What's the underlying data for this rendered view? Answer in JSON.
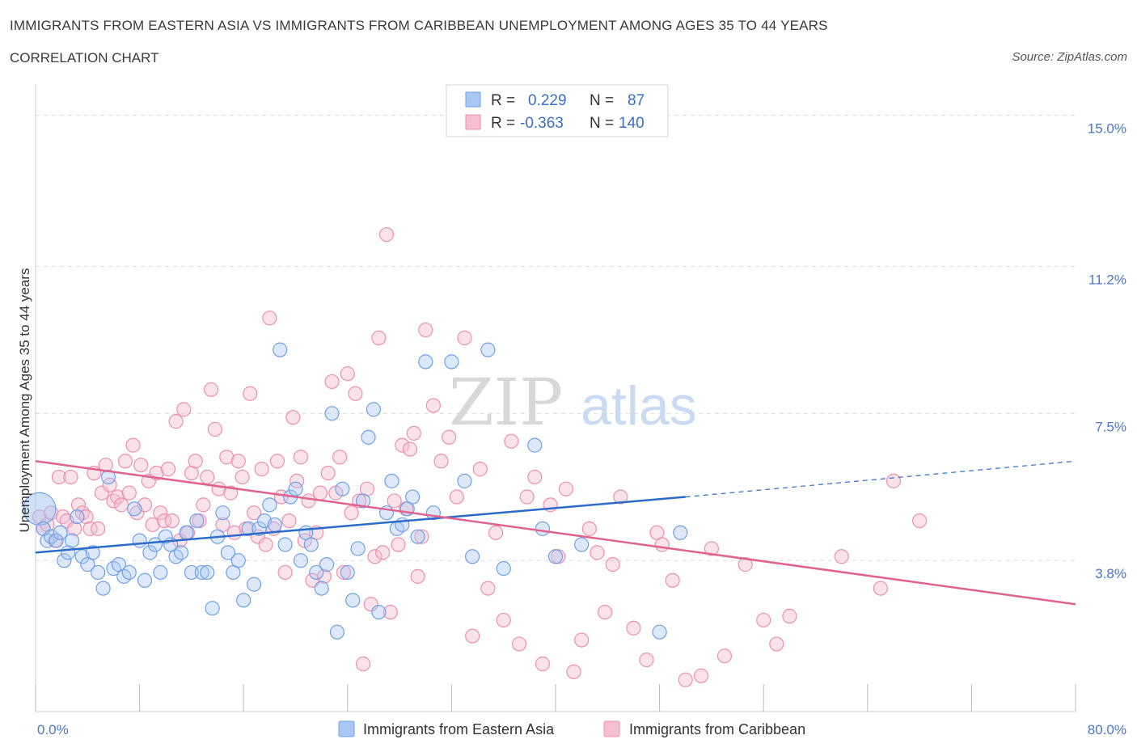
{
  "title": "IMMIGRANTS FROM EASTERN ASIA VS IMMIGRANTS FROM CARIBBEAN UNEMPLOYMENT AMONG AGES 35 TO 44 YEARS",
  "subtitle": "CORRELATION CHART",
  "source": "Source: ZipAtlas.com",
  "watermark": {
    "zip": "ZIP",
    "atlas": "atlas"
  },
  "colors": {
    "blue": "#6fa0e8",
    "blue_fill": "#a9c7f2",
    "blue_line": "#2b6cc9",
    "pink": "#ee8fb0",
    "pink_fill": "#f5bfd1",
    "pink_line": "#e0628f",
    "tick_text": "#4a78c4"
  },
  "legend": {
    "r_label": "R =",
    "n_label": "N =",
    "rows": [
      {
        "r": "0.229",
        "n": "87"
      },
      {
        "r": "-0.363",
        "n": "140"
      }
    ]
  },
  "chart_data": {
    "type": "scatter",
    "ylabel": "Unemployment Among Ages 35 to 44 years",
    "xlim": [
      0,
      80
    ],
    "ylim": [
      0,
      15.5
    ],
    "x_tick_labels": [
      "0.0%",
      "80.0%"
    ],
    "y_ticks": [
      3.8,
      7.5,
      11.2,
      15.0
    ],
    "y_tick_labels": [
      "3.8%",
      "7.5%",
      "11.2%",
      "15.0%"
    ],
    "grid": true,
    "legend_position": "top-center",
    "series": [
      {
        "name": "Immigrants from Eastern Asia",
        "trend": {
          "x": [
            0,
            50
          ],
          "y": [
            4.0,
            5.4
          ],
          "dashed_to": [
            80,
            6.3
          ]
        },
        "points": [
          [
            0.3,
            5.1
          ],
          [
            0.6,
            4.6
          ],
          [
            0.9,
            4.3
          ],
          [
            1.2,
            4.4
          ],
          [
            1.6,
            4.3
          ],
          [
            1.9,
            4.5
          ],
          [
            2.2,
            3.8
          ],
          [
            2.5,
            4.0
          ],
          [
            2.8,
            4.3
          ],
          [
            3.2,
            4.9
          ],
          [
            3.6,
            3.9
          ],
          [
            4.0,
            3.7
          ],
          [
            4.4,
            4.0
          ],
          [
            4.8,
            3.5
          ],
          [
            5.2,
            3.1
          ],
          [
            5.6,
            5.9
          ],
          [
            6.0,
            3.6
          ],
          [
            6.4,
            3.7
          ],
          [
            6.8,
            3.4
          ],
          [
            7.2,
            3.5
          ],
          [
            7.6,
            5.1
          ],
          [
            8.0,
            4.3
          ],
          [
            8.4,
            3.3
          ],
          [
            8.8,
            4.0
          ],
          [
            9.2,
            4.2
          ],
          [
            9.6,
            3.5
          ],
          [
            10.0,
            4.4
          ],
          [
            10.4,
            4.2
          ],
          [
            10.8,
            3.9
          ],
          [
            11.2,
            4.0
          ],
          [
            11.6,
            4.5
          ],
          [
            12.0,
            3.5
          ],
          [
            12.4,
            4.8
          ],
          [
            12.8,
            3.5
          ],
          [
            13.2,
            3.5
          ],
          [
            13.6,
            2.6
          ],
          [
            14.0,
            4.4
          ],
          [
            14.4,
            5.0
          ],
          [
            14.8,
            4.0
          ],
          [
            15.2,
            3.5
          ],
          [
            15.6,
            3.8
          ],
          [
            16.0,
            2.8
          ],
          [
            16.4,
            4.6
          ],
          [
            16.8,
            3.2
          ],
          [
            17.2,
            4.6
          ],
          [
            17.6,
            4.8
          ],
          [
            18.0,
            5.2
          ],
          [
            18.4,
            4.7
          ],
          [
            18.8,
            9.1
          ],
          [
            19.2,
            4.2
          ],
          [
            19.6,
            5.4
          ],
          [
            20.0,
            5.6
          ],
          [
            20.4,
            3.8
          ],
          [
            20.8,
            4.5
          ],
          [
            21.2,
            4.2
          ],
          [
            21.6,
            3.5
          ],
          [
            22.0,
            3.1
          ],
          [
            22.4,
            3.7
          ],
          [
            22.8,
            7.5
          ],
          [
            23.2,
            2.0
          ],
          [
            23.6,
            5.6
          ],
          [
            24.0,
            3.5
          ],
          [
            24.4,
            2.8
          ],
          [
            24.8,
            4.1
          ],
          [
            25.2,
            5.3
          ],
          [
            25.6,
            6.9
          ],
          [
            26.0,
            7.6
          ],
          [
            26.4,
            2.5
          ],
          [
            27.0,
            5.0
          ],
          [
            27.4,
            5.8
          ],
          [
            27.8,
            4.6
          ],
          [
            28.2,
            4.7
          ],
          [
            28.6,
            5.1
          ],
          [
            29.0,
            5.4
          ],
          [
            29.4,
            4.4
          ],
          [
            30.0,
            8.8
          ],
          [
            30.6,
            5.0
          ],
          [
            32.0,
            8.8
          ],
          [
            33.0,
            5.8
          ],
          [
            33.6,
            3.9
          ],
          [
            34.8,
            9.1
          ],
          [
            36.0,
            3.6
          ],
          [
            38.4,
            6.7
          ],
          [
            39.0,
            4.6
          ],
          [
            40.0,
            3.9
          ],
          [
            42.0,
            4.2
          ],
          [
            48.0,
            2.0
          ],
          [
            49.6,
            4.5
          ]
        ]
      },
      {
        "name": "Immigrants from Caribbean",
        "trend": {
          "x": [
            0,
            80
          ],
          "y": [
            6.3,
            2.7
          ]
        },
        "points": [
          [
            0.3,
            4.9
          ],
          [
            0.6,
            4.6
          ],
          [
            0.9,
            4.7
          ],
          [
            1.2,
            5.0
          ],
          [
            1.5,
            4.3
          ],
          [
            1.8,
            5.9
          ],
          [
            2.1,
            4.9
          ],
          [
            2.4,
            4.8
          ],
          [
            2.7,
            5.9
          ],
          [
            3.0,
            4.6
          ],
          [
            3.3,
            5.2
          ],
          [
            3.6,
            5.0
          ],
          [
            3.9,
            4.9
          ],
          [
            4.2,
            4.6
          ],
          [
            4.5,
            6.0
          ],
          [
            4.8,
            4.6
          ],
          [
            5.1,
            5.5
          ],
          [
            5.4,
            6.2
          ],
          [
            5.7,
            5.7
          ],
          [
            6.0,
            5.3
          ],
          [
            6.3,
            5.4
          ],
          [
            6.6,
            5.2
          ],
          [
            6.9,
            6.3
          ],
          [
            7.2,
            5.5
          ],
          [
            7.5,
            6.7
          ],
          [
            7.8,
            5.0
          ],
          [
            8.1,
            6.2
          ],
          [
            8.4,
            5.2
          ],
          [
            8.7,
            5.8
          ],
          [
            9.0,
            4.7
          ],
          [
            9.3,
            6.0
          ],
          [
            9.6,
            5.0
          ],
          [
            9.9,
            4.8
          ],
          [
            10.2,
            6.1
          ],
          [
            10.5,
            4.8
          ],
          [
            10.8,
            7.3
          ],
          [
            11.1,
            4.3
          ],
          [
            11.4,
            7.6
          ],
          [
            11.7,
            4.5
          ],
          [
            12.0,
            6.0
          ],
          [
            12.3,
            6.3
          ],
          [
            12.6,
            4.8
          ],
          [
            12.9,
            5.2
          ],
          [
            13.2,
            5.9
          ],
          [
            13.5,
            8.1
          ],
          [
            13.8,
            7.1
          ],
          [
            14.1,
            5.6
          ],
          [
            14.4,
            4.7
          ],
          [
            14.7,
            6.4
          ],
          [
            15.0,
            5.5
          ],
          [
            15.3,
            4.5
          ],
          [
            15.6,
            6.3
          ],
          [
            15.9,
            5.9
          ],
          [
            16.2,
            4.6
          ],
          [
            16.5,
            8.0
          ],
          [
            16.8,
            5.0
          ],
          [
            17.1,
            4.4
          ],
          [
            17.4,
            6.1
          ],
          [
            17.7,
            4.2
          ],
          [
            18.0,
            9.9
          ],
          [
            18.3,
            4.6
          ],
          [
            18.6,
            6.3
          ],
          [
            18.9,
            5.4
          ],
          [
            19.2,
            3.5
          ],
          [
            19.5,
            4.8
          ],
          [
            19.8,
            7.4
          ],
          [
            20.1,
            5.8
          ],
          [
            20.4,
            6.4
          ],
          [
            20.7,
            4.3
          ],
          [
            21.0,
            5.3
          ],
          [
            21.3,
            3.3
          ],
          [
            21.6,
            4.5
          ],
          [
            21.9,
            5.5
          ],
          [
            22.2,
            3.4
          ],
          [
            22.5,
            6.0
          ],
          [
            22.8,
            8.3
          ],
          [
            23.1,
            5.5
          ],
          [
            23.4,
            6.4
          ],
          [
            23.7,
            3.5
          ],
          [
            24.0,
            8.5
          ],
          [
            24.3,
            5.0
          ],
          [
            24.6,
            8.0
          ],
          [
            24.9,
            5.3
          ],
          [
            25.2,
            1.2
          ],
          [
            25.5,
            5.6
          ],
          [
            25.8,
            2.7
          ],
          [
            26.1,
            3.9
          ],
          [
            26.4,
            9.4
          ],
          [
            26.7,
            4.0
          ],
          [
            27.0,
            12.0
          ],
          [
            27.3,
            2.5
          ],
          [
            27.6,
            5.3
          ],
          [
            27.9,
            4.2
          ],
          [
            28.2,
            6.7
          ],
          [
            28.5,
            5.1
          ],
          [
            28.8,
            6.6
          ],
          [
            29.1,
            7.0
          ],
          [
            29.4,
            3.4
          ],
          [
            29.7,
            4.4
          ],
          [
            30.0,
            9.6
          ],
          [
            30.6,
            7.7
          ],
          [
            31.2,
            6.3
          ],
          [
            31.8,
            6.9
          ],
          [
            32.4,
            5.4
          ],
          [
            33.0,
            9.4
          ],
          [
            33.6,
            1.9
          ],
          [
            34.2,
            6.1
          ],
          [
            34.8,
            3.1
          ],
          [
            35.4,
            4.5
          ],
          [
            36.0,
            2.3
          ],
          [
            36.6,
            6.8
          ],
          [
            37.2,
            1.7
          ],
          [
            37.8,
            5.4
          ],
          [
            38.4,
            5.9
          ],
          [
            39.0,
            1.2
          ],
          [
            39.6,
            5.2
          ],
          [
            40.2,
            3.9
          ],
          [
            40.8,
            5.6
          ],
          [
            41.4,
            1.0
          ],
          [
            42.0,
            1.8
          ],
          [
            42.6,
            4.6
          ],
          [
            43.2,
            4.0
          ],
          [
            43.8,
            2.5
          ],
          [
            44.4,
            3.7
          ],
          [
            45.0,
            5.4
          ],
          [
            46.0,
            2.1
          ],
          [
            47.0,
            1.3
          ],
          [
            47.8,
            4.5
          ],
          [
            48.2,
            4.2
          ],
          [
            49.0,
            3.3
          ],
          [
            50.0,
            0.8
          ],
          [
            51.2,
            0.9
          ],
          [
            52.0,
            4.1
          ],
          [
            53.0,
            1.4
          ],
          [
            54.6,
            3.7
          ],
          [
            56.0,
            2.3
          ],
          [
            57.0,
            1.7
          ],
          [
            58.0,
            2.4
          ],
          [
            62.0,
            3.9
          ],
          [
            65.0,
            3.1
          ],
          [
            66.0,
            5.8
          ],
          [
            68.0,
            4.8
          ]
        ]
      }
    ]
  },
  "bottom_legend": [
    {
      "label": "Immigrants from Eastern Asia"
    },
    {
      "label": "Immigrants from Caribbean"
    }
  ]
}
